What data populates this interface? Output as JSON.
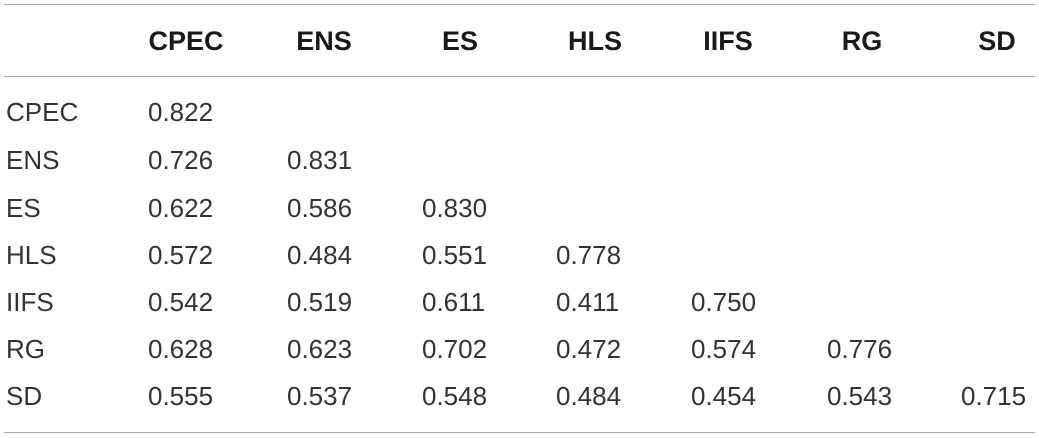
{
  "table": {
    "columns": [
      "CPEC",
      "ENS",
      "ES",
      "HLS",
      "IIFS",
      "RG",
      "SD"
    ],
    "rows": [
      {
        "label": "CPEC",
        "values": [
          "0.822",
          "",
          "",
          "",
          "",
          "",
          ""
        ]
      },
      {
        "label": "ENS",
        "values": [
          "0.726",
          "0.831",
          "",
          "",
          "",
          "",
          ""
        ]
      },
      {
        "label": "ES",
        "values": [
          "0.622",
          "0.586",
          "0.830",
          "",
          "",
          "",
          ""
        ]
      },
      {
        "label": "HLS",
        "values": [
          "0.572",
          "0.484",
          "0.551",
          "0.778",
          "",
          "",
          ""
        ]
      },
      {
        "label": "IIFS",
        "values": [
          "0.542",
          "0.519",
          "0.611",
          "0.411",
          "0.750",
          "",
          ""
        ]
      },
      {
        "label": "RG",
        "values": [
          "0.628",
          "0.623",
          "0.702",
          "0.472",
          "0.574",
          "0.776",
          ""
        ]
      },
      {
        "label": "SD",
        "values": [
          "0.555",
          "0.537",
          "0.548",
          "0.484",
          "0.454",
          "0.543",
          "0.715"
        ]
      }
    ]
  }
}
